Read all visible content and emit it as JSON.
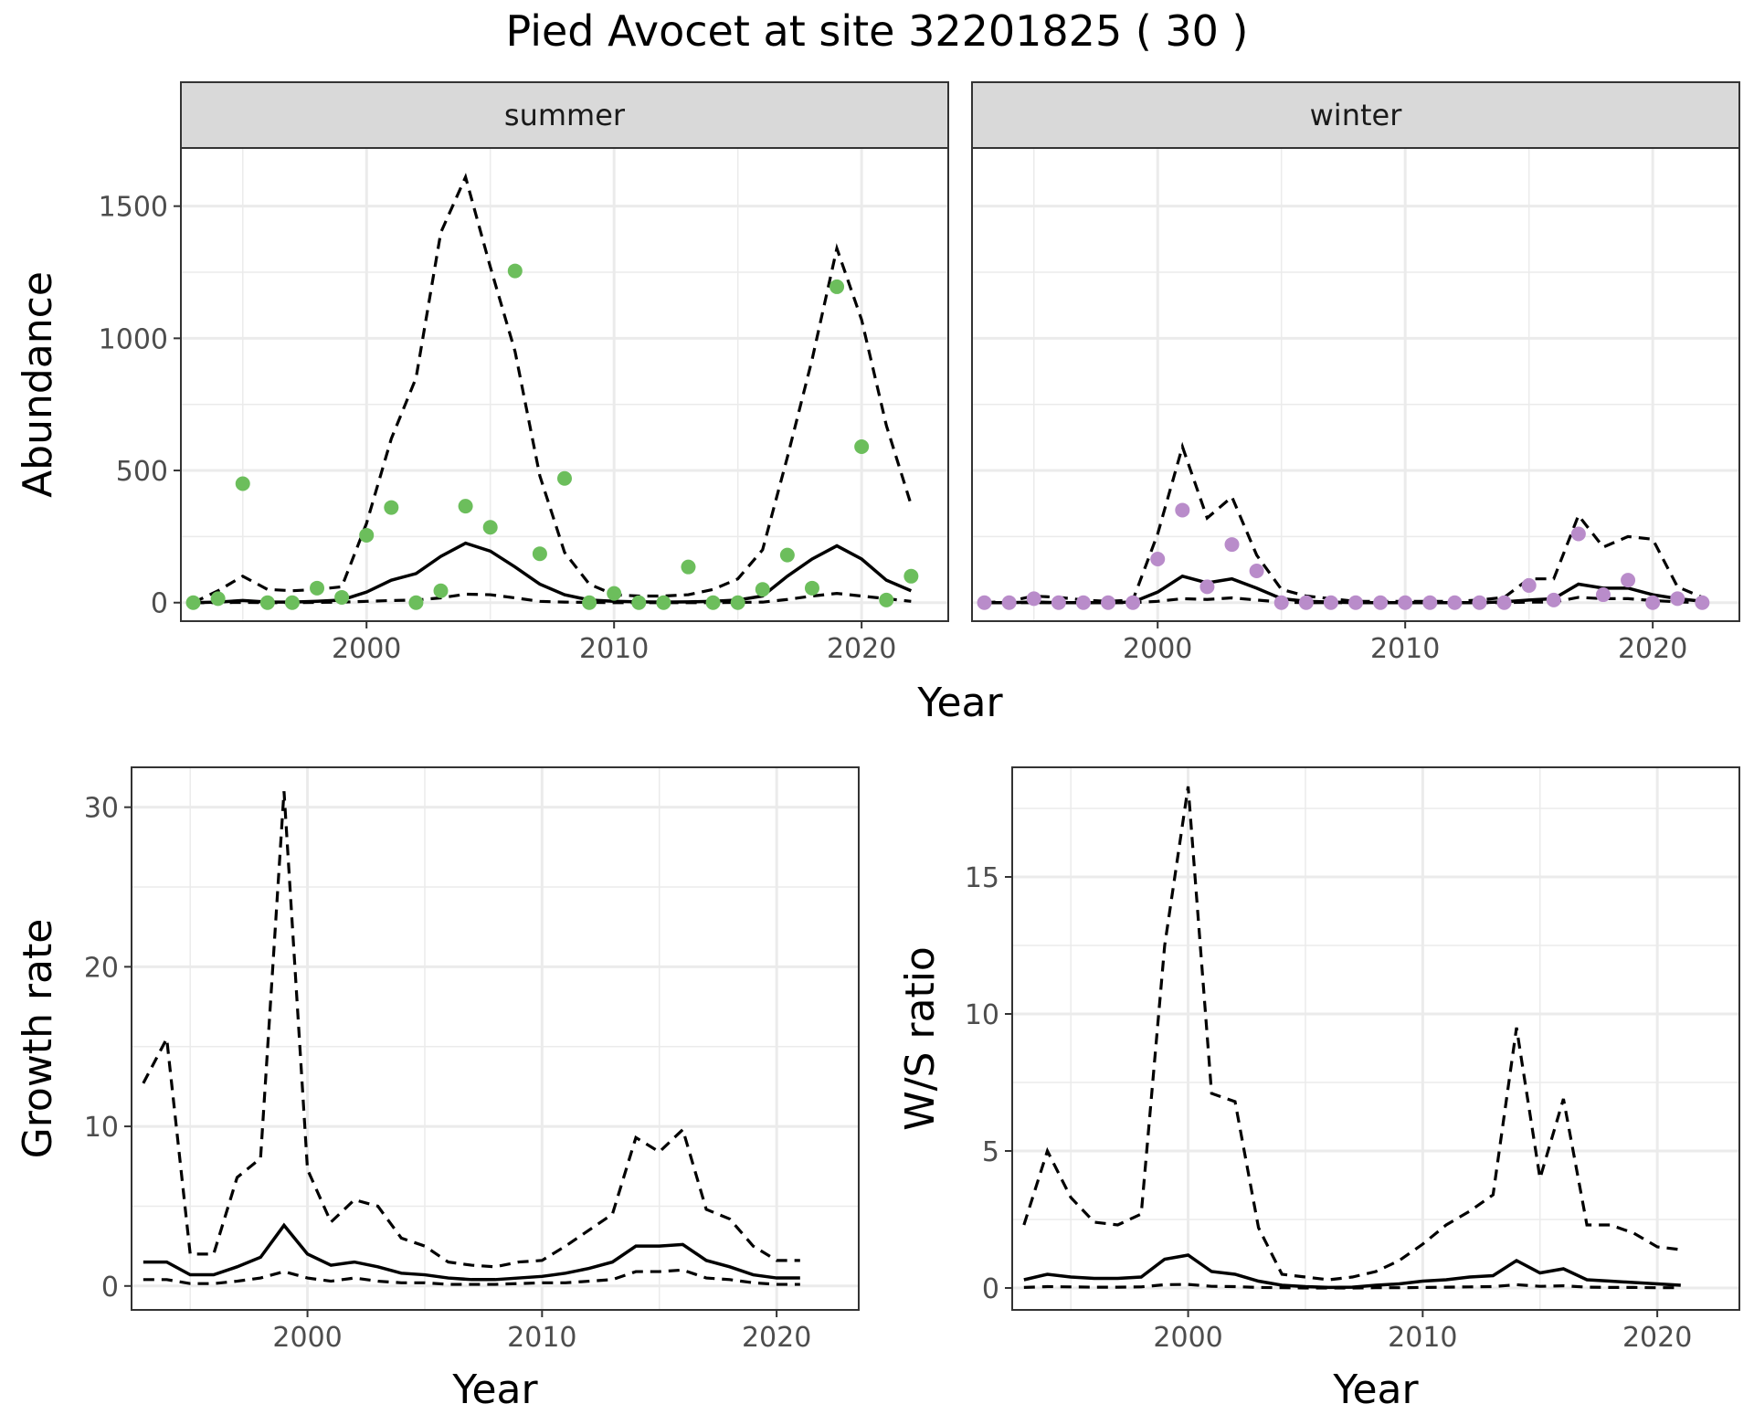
{
  "title": "Pied Avocet at site 32201825 ( 30 )",
  "colors": {
    "summer_points": "#6cbe5c",
    "winter_points": "#b98cca",
    "strip_bg": "#d9d9d9"
  },
  "chart_data": [
    {
      "id": "abundance",
      "type": "line",
      "ylabel": "Abundance",
      "xlabel": "Year",
      "xlim": [
        1992.5,
        2023.5
      ],
      "ylim": [
        -70,
        1720
      ],
      "xticks": [
        2000,
        2010,
        2020
      ],
      "yticks": [
        0,
        500,
        1000,
        1500
      ],
      "facets": [
        {
          "label": "summer",
          "point_color": "#6cbe5c",
          "points": {
            "x": [
              1993,
              1994,
              1995,
              1996,
              1997,
              1998,
              1999,
              2000,
              2001,
              2002,
              2003,
              2004,
              2005,
              2006,
              2007,
              2008,
              2009,
              2010,
              2011,
              2012,
              2013,
              2014,
              2015,
              2016,
              2017,
              2018,
              2019,
              2020,
              2021,
              2022
            ],
            "y": [
              0,
              15,
              450,
              0,
              0,
              55,
              20,
              255,
              360,
              0,
              45,
              365,
              285,
              1255,
              185,
              470,
              0,
              35,
              0,
              0,
              135,
              0,
              0,
              50,
              180,
              55,
              1195,
              590,
              10,
              100
            ]
          },
          "series": [
            {
              "name": "",
              "style": "solid",
              "x": [
                1993,
                1994,
                1995,
                1996,
                1997,
                1998,
                1999,
                2000,
                2001,
                2002,
                2003,
                2004,
                2005,
                2006,
                2007,
                2008,
                2009,
                2010,
                2011,
                2012,
                2013,
                2014,
                2015,
                2016,
                2017,
                2018,
                2019,
                2020,
                2021,
                2022
              ],
              "y": [
                0,
                2,
                8,
                2,
                2,
                5,
                10,
                40,
                85,
                110,
                175,
                225,
                195,
                135,
                70,
                30,
                10,
                5,
                3,
                2,
                3,
                5,
                10,
                25,
                100,
                165,
                215,
                165,
                85,
                45
              ]
            },
            {
              "name": "",
              "style": "dashed",
              "x": [
                1993,
                1994,
                1995,
                1996,
                1997,
                1998,
                1999,
                2000,
                2001,
                2002,
                2003,
                2004,
                2005,
                2006,
                2007,
                2008,
                2009,
                2010,
                2011,
                2012,
                2013,
                2014,
                2015,
                2016,
                2017,
                2018,
                2019,
                2020,
                2021,
                2022
              ],
              "y": [
                0,
                45,
                100,
                50,
                45,
                50,
                60,
                300,
                620,
                850,
                1400,
                1610,
                1270,
                950,
                480,
                190,
                70,
                30,
                25,
                25,
                30,
                50,
                90,
                200,
                550,
                920,
                1340,
                1070,
                670,
                370
              ]
            },
            {
              "name": "",
              "style": "dashed",
              "x": [
                1993,
                1994,
                1995,
                1996,
                1997,
                1998,
                1999,
                2000,
                2001,
                2002,
                2003,
                2004,
                2005,
                2006,
                2007,
                2008,
                2009,
                2010,
                2011,
                2012,
                2013,
                2014,
                2015,
                2016,
                2017,
                2018,
                2019,
                2020,
                2021,
                2022
              ],
              "y": [
                0,
                0,
                1,
                0,
                0,
                1,
                2,
                5,
                8,
                10,
                18,
                32,
                30,
                18,
                5,
                2,
                1,
                0,
                0,
                0,
                0,
                0,
                1,
                2,
                12,
                25,
                35,
                25,
                15,
                5
              ]
            }
          ]
        },
        {
          "label": "winter",
          "point_color": "#b98cca",
          "points": {
            "x": [
              1993,
              1994,
              1995,
              1996,
              1997,
              1998,
              1999,
              2000,
              2001,
              2002,
              2003,
              2004,
              2005,
              2006,
              2007,
              2008,
              2009,
              2010,
              2011,
              2012,
              2013,
              2014,
              2015,
              2016,
              2017,
              2018,
              2019,
              2020,
              2021,
              2022
            ],
            "y": [
              0,
              0,
              15,
              0,
              0,
              0,
              0,
              165,
              350,
              60,
              220,
              120,
              0,
              0,
              0,
              0,
              0,
              0,
              0,
              0,
              0,
              0,
              65,
              10,
              260,
              30,
              85,
              0,
              15,
              0
            ]
          },
          "series": [
            {
              "name": "",
              "style": "solid",
              "x": [
                1993,
                1994,
                1995,
                1996,
                1997,
                1998,
                1999,
                2000,
                2001,
                2002,
                2003,
                2004,
                2005,
                2006,
                2007,
                2008,
                2009,
                2010,
                2011,
                2012,
                2013,
                2014,
                2015,
                2016,
                2017,
                2018,
                2019,
                2020,
                2021,
                2022
              ],
              "y": [
                0,
                0,
                2,
                0,
                0,
                0,
                2,
                40,
                100,
                75,
                90,
                55,
                15,
                5,
                2,
                0,
                0,
                0,
                0,
                0,
                0,
                3,
                10,
                15,
                70,
                55,
                55,
                30,
                15,
                5
              ]
            },
            {
              "name": "",
              "style": "dashed",
              "x": [
                1993,
                1994,
                1995,
                1996,
                1997,
                1998,
                1999,
                2000,
                2001,
                2002,
                2003,
                2004,
                2005,
                2006,
                2007,
                2008,
                2009,
                2010,
                2011,
                2012,
                2013,
                2014,
                2015,
                2016,
                2017,
                2018,
                2019,
                2020,
                2021,
                2022
              ],
              "y": [
                0,
                5,
                25,
                20,
                10,
                5,
                10,
                260,
                590,
                320,
                400,
                180,
                50,
                25,
                15,
                5,
                5,
                5,
                5,
                5,
                10,
                20,
                90,
                90,
                330,
                210,
                250,
                240,
                60,
                20
              ]
            },
            {
              "name": "",
              "style": "dashed",
              "x": [
                1993,
                1994,
                1995,
                1996,
                1997,
                1998,
                1999,
                2000,
                2001,
                2002,
                2003,
                2004,
                2005,
                2006,
                2007,
                2008,
                2009,
                2010,
                2011,
                2012,
                2013,
                2014,
                2015,
                2016,
                2017,
                2018,
                2019,
                2020,
                2021,
                2022
              ],
              "y": [
                0,
                0,
                0,
                0,
                0,
                0,
                0,
                5,
                15,
                12,
                18,
                10,
                2,
                0,
                0,
                0,
                0,
                0,
                0,
                0,
                0,
                0,
                2,
                2,
                20,
                15,
                15,
                8,
                3,
                0
              ]
            }
          ]
        }
      ]
    },
    {
      "id": "growth",
      "type": "line",
      "ylabel": "Growth rate",
      "xlabel": "Year",
      "xlim": [
        1992.5,
        2023.5
      ],
      "ylim": [
        -1.5,
        32.5
      ],
      "xticks": [
        2000,
        2010,
        2020
      ],
      "yticks": [
        0,
        10,
        20,
        30
      ],
      "series": [
        {
          "name": "",
          "style": "solid",
          "x": [
            1993,
            1994,
            1995,
            1996,
            1997,
            1998,
            1999,
            2000,
            2001,
            2002,
            2003,
            2004,
            2005,
            2006,
            2007,
            2008,
            2009,
            2010,
            2011,
            2012,
            2013,
            2014,
            2015,
            2016,
            2017,
            2018,
            2019,
            2020,
            2021
          ],
          "y": [
            1.5,
            1.5,
            0.7,
            0.7,
            1.2,
            1.8,
            3.8,
            2.0,
            1.3,
            1.5,
            1.2,
            0.8,
            0.7,
            0.5,
            0.4,
            0.4,
            0.5,
            0.6,
            0.8,
            1.1,
            1.5,
            2.5,
            2.5,
            2.6,
            1.6,
            1.2,
            0.7,
            0.5,
            0.5
          ]
        },
        {
          "name": "",
          "style": "dashed",
          "x": [
            1993,
            1994,
            1995,
            1996,
            1997,
            1998,
            1999,
            2000,
            2001,
            2002,
            2003,
            2004,
            2005,
            2006,
            2007,
            2008,
            2009,
            2010,
            2011,
            2012,
            2013,
            2014,
            2015,
            2016,
            2017,
            2018,
            2019,
            2020,
            2021
          ],
          "y": [
            12.7,
            15.5,
            2.0,
            2.0,
            6.8,
            8.0,
            31.0,
            7.3,
            4.0,
            5.4,
            5.0,
            3.0,
            2.5,
            1.5,
            1.3,
            1.2,
            1.5,
            1.6,
            2.5,
            3.5,
            4.5,
            9.3,
            8.4,
            9.8,
            4.8,
            4.2,
            2.5,
            1.6,
            1.6
          ]
        },
        {
          "name": "",
          "style": "dashed",
          "x": [
            1993,
            1994,
            1995,
            1996,
            1997,
            1998,
            1999,
            2000,
            2001,
            2002,
            2003,
            2004,
            2005,
            2006,
            2007,
            2008,
            2009,
            2010,
            2011,
            2012,
            2013,
            2014,
            2015,
            2016,
            2017,
            2018,
            2019,
            2020,
            2021
          ],
          "y": [
            0.4,
            0.4,
            0.15,
            0.15,
            0.3,
            0.5,
            0.9,
            0.5,
            0.3,
            0.5,
            0.3,
            0.2,
            0.2,
            0.1,
            0.1,
            0.1,
            0.15,
            0.2,
            0.2,
            0.3,
            0.4,
            0.9,
            0.9,
            1.0,
            0.5,
            0.4,
            0.2,
            0.1,
            0.1
          ]
        }
      ]
    },
    {
      "id": "ws_ratio",
      "type": "line",
      "ylabel": "W/S ratio",
      "xlabel": "Year",
      "xlim": [
        1992.5,
        2023.5
      ],
      "ylim": [
        -0.8,
        19.0
      ],
      "xticks": [
        2000,
        2010,
        2020
      ],
      "yticks": [
        0,
        5,
        10,
        15
      ],
      "series": [
        {
          "name": "",
          "style": "solid",
          "x": [
            1993,
            1994,
            1995,
            1996,
            1997,
            1998,
            1999,
            2000,
            2001,
            2002,
            2003,
            2004,
            2005,
            2006,
            2007,
            2008,
            2009,
            2010,
            2011,
            2012,
            2013,
            2014,
            2015,
            2016,
            2017,
            2018,
            2019,
            2020,
            2021
          ],
          "y": [
            0.3,
            0.5,
            0.4,
            0.35,
            0.35,
            0.4,
            1.05,
            1.2,
            0.6,
            0.5,
            0.25,
            0.1,
            0.05,
            0.02,
            0.03,
            0.1,
            0.15,
            0.25,
            0.3,
            0.4,
            0.45,
            1.0,
            0.55,
            0.7,
            0.3,
            0.25,
            0.2,
            0.15,
            0.1
          ]
        },
        {
          "name": "",
          "style": "dashed",
          "x": [
            1993,
            1994,
            1995,
            1996,
            1997,
            1998,
            1999,
            2000,
            2001,
            2002,
            2003,
            2004,
            2005,
            2006,
            2007,
            2008,
            2009,
            2010,
            2011,
            2012,
            2013,
            2014,
            2015,
            2016,
            2017,
            2018,
            2019,
            2020,
            2021
          ],
          "y": [
            2.3,
            5.0,
            3.3,
            2.4,
            2.3,
            2.7,
            12.5,
            18.3,
            7.1,
            6.8,
            2.2,
            0.5,
            0.4,
            0.3,
            0.4,
            0.6,
            1.0,
            1.6,
            2.3,
            2.8,
            3.4,
            9.5,
            4.0,
            6.9,
            2.3,
            2.3,
            2.0,
            1.5,
            1.4
          ]
        },
        {
          "name": "",
          "style": "dashed",
          "x": [
            1993,
            1994,
            1995,
            1996,
            1997,
            1998,
            1999,
            2000,
            2001,
            2002,
            2003,
            2004,
            2005,
            2006,
            2007,
            2008,
            2009,
            2010,
            2011,
            2012,
            2013,
            2014,
            2015,
            2016,
            2017,
            2018,
            2019,
            2020,
            2021
          ],
          "y": [
            0.02,
            0.05,
            0.04,
            0.03,
            0.03,
            0.04,
            0.12,
            0.13,
            0.06,
            0.05,
            0.02,
            0.01,
            0.0,
            0.0,
            0.0,
            0.01,
            0.01,
            0.02,
            0.03,
            0.04,
            0.05,
            0.12,
            0.06,
            0.08,
            0.03,
            0.02,
            0.02,
            0.01,
            0.01
          ]
        }
      ]
    }
  ]
}
